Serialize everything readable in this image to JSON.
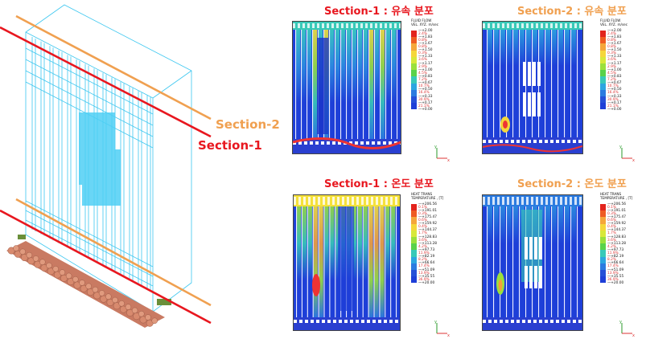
{
  "sections": {
    "label_2": "Section-2",
    "label_1": "Section-1"
  },
  "panels": {
    "tl_title": "Section-1 : 유속 분포",
    "tr_title": "Section-2 : 유속 분포",
    "bl_title": "Section-1 : 온도 분포",
    "br_title": "Section-2 : 온도 분포"
  },
  "colors": {
    "section1": "#e8171f",
    "section2": "#f0a050",
    "wire": "#3cc7f0"
  },
  "legend_velocity": {
    "header": "FLUID FLOW\nVEL. XYZ. m/sec",
    "values": [
      "+2.00",
      "+1.83",
      "+1.67",
      "+1.50",
      "+1.33",
      "+1.17",
      "+1.00",
      "+0.83",
      "+0.67",
      "+0.50",
      "+0.33",
      "+0.17",
      "+0.00"
    ],
    "pcts": [
      "2.4%",
      "0.8%",
      "0.8%",
      "0.3%",
      "3.6%",
      "2.9%",
      "4.5%",
      "7.2%",
      "10.7%",
      "16.4%",
      "30.9%",
      "21.1%"
    ]
  },
  "legend_velocity_r": {
    "header": "FLUID FLOW\nVEL. XYZ. m/sec",
    "values": [
      "+2.00",
      "+1.83",
      "+1.67",
      "+1.50",
      "+1.33",
      "+1.17",
      "+1.00",
      "+0.83",
      "+0.67",
      "+0.50",
      "+0.33",
      "+0.17",
      "+0.00"
    ],
    "pcts": [
      "2.4%",
      "0.8%",
      "0.8%",
      "0.3%",
      "3.6%",
      "2.9%",
      "4.5%",
      "7.2%",
      "10.7%",
      "16.4%",
      "30.9%",
      "21.1%"
    ]
  },
  "legend_temp": {
    "header": "HEAT TRANS\nTEMPERATURE , [T]",
    "values": [
      "+206.56",
      "+191.01",
      "+175.47",
      "+159.92",
      "+144.37",
      "+128.83",
      "+113.28",
      "+97.73",
      "+82.19",
      "+66.64",
      "+51.09",
      "+35.55",
      "+20.00"
    ],
    "pcts": [
      "0.1%",
      "0.3%",
      "0.6%",
      "0.4%",
      "1.7%",
      "3.6%",
      "4.2%",
      "11.9%",
      "8.2%",
      "17.4%",
      "13.9%",
      "36.9%"
    ]
  },
  "legend_temp_r": {
    "header": "HEAT TRANS\nTEMPERATURE , [T]",
    "values": [
      "+206.56",
      "+191.01",
      "+175.47",
      "+159.92",
      "+144.37",
      "+128.83",
      "+113.28",
      "+97.73",
      "+82.19",
      "+66.64",
      "+51.09",
      "+35.55",
      "+20.00"
    ],
    "pcts": [
      "0.1%",
      "0.3%",
      "0.6%",
      "0.4%",
      "1.7%",
      "3.6%",
      "4.2%",
      "11.9%",
      "8.2%",
      "17.4%",
      "13.9%",
      "36.9%"
    ]
  },
  "axis": {
    "y": "y",
    "x": "x",
    "z": "z"
  }
}
